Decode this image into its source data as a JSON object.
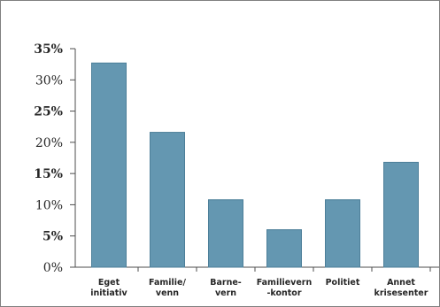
{
  "chart_data": {
    "type": "bar",
    "categories": [
      [
        "Eget",
        "initiativ"
      ],
      [
        "Familie/",
        "venn"
      ],
      [
        "Barne-",
        "vern"
      ],
      [
        "Familievern",
        "-kontor"
      ],
      [
        "Politiet"
      ],
      [
        "Annet",
        "krisesenter"
      ]
    ],
    "values": [
      32.7,
      21.6,
      10.8,
      6.0,
      10.8,
      16.8
    ],
    "ylim": [
      0,
      35
    ],
    "yticks": [
      0,
      5,
      10,
      15,
      20,
      25,
      30,
      35
    ],
    "ytick_labels": [
      "0%",
      "5%",
      "10%",
      "15%",
      "20%",
      "25%",
      "30%",
      "35%"
    ],
    "ytick_bold": [
      false,
      true,
      false,
      true,
      false,
      true,
      false,
      true
    ],
    "bar_color": "#6497b1",
    "bar_edge_color": "#4d7f99",
    "axis_color": "#4d4d4d",
    "grid": false,
    "title": "",
    "xlabel": "",
    "ylabel": ""
  }
}
